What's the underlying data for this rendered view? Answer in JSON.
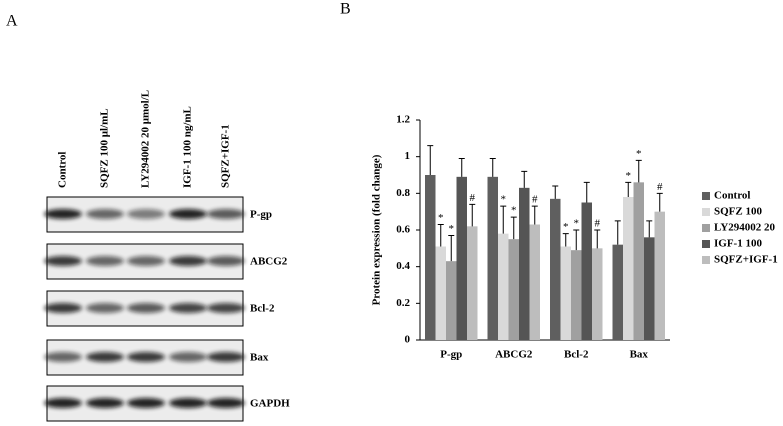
{
  "panel_a": {
    "label": "A",
    "lanes": [
      "Control",
      "SQFZ 100 μl/mL",
      "LY294002 20 μmol/L",
      "IGF-1 100 ng/mL",
      "SQFZ+IGF-1"
    ],
    "proteins": [
      "P-gp",
      "ABCG2",
      "Bcl-2",
      "Bax",
      "GAPDH"
    ]
  },
  "chart_data": {
    "type": "bar",
    "panel_label": "B",
    "y_label": "Protein expression (fold change)",
    "categories": [
      "P-gp",
      "ABCG2",
      "Bcl-2",
      "Bax"
    ],
    "series": [
      {
        "name": "Control",
        "color": "#5f5f5f",
        "values": [
          0.9,
          0.89,
          0.77,
          0.52
        ],
        "errors": [
          0.16,
          0.1,
          0.07,
          0.13
        ],
        "annotations": [
          null,
          null,
          null,
          null
        ]
      },
      {
        "name": "SQFZ 100",
        "color": "#d9d9d9",
        "values": [
          0.51,
          0.58,
          0.51,
          0.78
        ],
        "errors": [
          0.12,
          0.15,
          0.07,
          0.08
        ],
        "annotations": [
          "*",
          "*",
          "*",
          "*"
        ]
      },
      {
        "name": "LY294002 20",
        "color": "#a0a0a0",
        "values": [
          0.43,
          0.55,
          0.49,
          0.86
        ],
        "errors": [
          0.14,
          0.12,
          0.11,
          0.12
        ],
        "annotations": [
          "*",
          "*",
          "*",
          "*"
        ]
      },
      {
        "name": "IGF-1 100",
        "color": "#555555",
        "values": [
          0.89,
          0.83,
          0.75,
          0.56
        ],
        "errors": [
          0.1,
          0.09,
          0.11,
          0.09
        ],
        "annotations": [
          null,
          null,
          null,
          null
        ]
      },
      {
        "name": "SQFZ+IGF-1",
        "color": "#bdbdbd",
        "values": [
          0.62,
          0.63,
          0.5,
          0.7
        ],
        "errors": [
          0.12,
          0.1,
          0.1,
          0.1
        ],
        "annotations": [
          "#",
          "#",
          "#",
          "#"
        ]
      }
    ],
    "ylim": [
      0,
      1.2
    ],
    "yticks": [
      0,
      0.2,
      0.4,
      0.6,
      0.8,
      1,
      1.2
    ],
    "legend": "right"
  }
}
